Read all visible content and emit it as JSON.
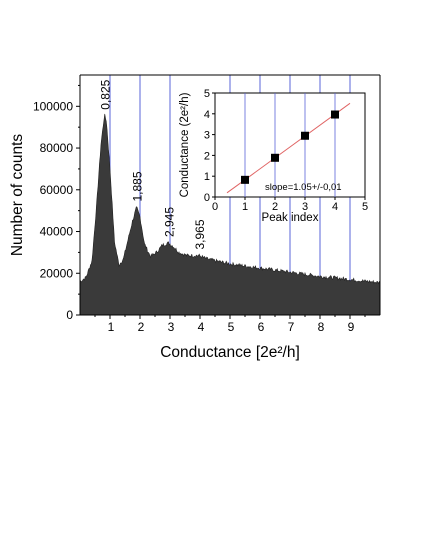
{
  "chart_data": [
    {
      "type": "bar",
      "title": "",
      "xlabel": "Conductance [2e²/h]",
      "ylabel": "Number of counts",
      "xlim": [
        0,
        10
      ],
      "ylim": [
        0,
        115000
      ],
      "x_ticks": [
        1,
        2,
        3,
        4,
        5,
        6,
        7,
        8,
        9
      ],
      "y_ticks": [
        0,
        20000,
        40000,
        60000,
        80000,
        100000
      ],
      "x_tick_labels": [
        "1",
        "2",
        "3",
        "4",
        "5",
        "6",
        "7",
        "8",
        "9"
      ],
      "y_tick_labels": [
        "0",
        "20000",
        "40000",
        "60000",
        "80000",
        "100000"
      ],
      "reference_lines_x": [
        1,
        2,
        3,
        5,
        6,
        7,
        8,
        9
      ],
      "histogram_profile": {
        "x": [
          0,
          0.2,
          0.4,
          0.55,
          0.7,
          0.8,
          0.825,
          0.88,
          1.0,
          1.15,
          1.3,
          1.45,
          1.6,
          1.75,
          1.885,
          2.0,
          2.15,
          2.35,
          2.55,
          2.75,
          2.945,
          3.1,
          3.3,
          3.55,
          3.8,
          3.965,
          4.2,
          4.5,
          5.0,
          5.5,
          6.0,
          6.5,
          7.0,
          7.5,
          8.0,
          8.5,
          9.0,
          9.5,
          10.0
        ],
        "counts": [
          16000,
          18000,
          26000,
          52000,
          82000,
          94000,
          95500,
          93000,
          70000,
          35000,
          24000,
          27000,
          36000,
          45000,
          51500,
          47000,
          34000,
          28000,
          30000,
          33500,
          34500,
          33000,
          30000,
          28500,
          28500,
          28500,
          27000,
          26000,
          24500,
          23500,
          22500,
          21500,
          20500,
          19500,
          18500,
          17800,
          17000,
          16200,
          15500
        ]
      },
      "peaks": [
        {
          "x": 0.825,
          "label": "0,825"
        },
        {
          "x": 1.885,
          "label": "1,885"
        },
        {
          "x": 2.945,
          "label": "2,945"
        },
        {
          "x": 3.965,
          "label": "3,965"
        }
      ]
    },
    {
      "type": "scatter",
      "title": "",
      "xlabel": "Peak index",
      "ylabel": "Conductance (2e²/h)",
      "xlim": [
        0,
        5
      ],
      "ylim": [
        0,
        5
      ],
      "x_ticks": [
        0,
        1,
        2,
        3,
        4,
        5
      ],
      "y_ticks": [
        0,
        1,
        2,
        3,
        4,
        5
      ],
      "x": [
        1,
        2,
        3,
        4
      ],
      "y": [
        0.825,
        1.885,
        2.945,
        3.965
      ],
      "fit": {
        "slope": 1.05,
        "intercept": -0.22
      },
      "annotation": "slope=1.05+/-0,01"
    }
  ],
  "colors": {
    "histogram": "#3a3a3a",
    "reference_lines": "#5a64d8",
    "fit_line": "#e06464",
    "markers": "#000000"
  }
}
